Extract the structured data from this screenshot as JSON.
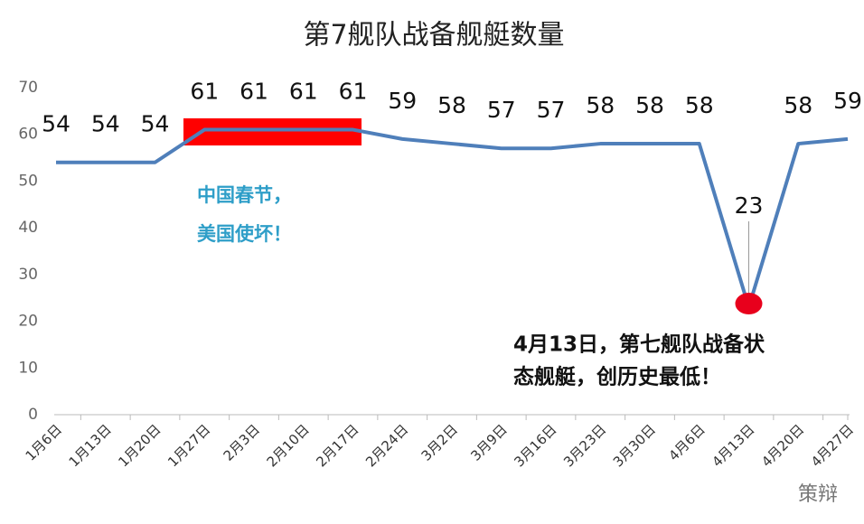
{
  "chart_data": {
    "type": "line",
    "title": "第7舰队战备舰艇数量",
    "categories": [
      "1月6日",
      "1月13日",
      "1月20日",
      "1月27日",
      "2月3日",
      "2月10日",
      "2月17日",
      "2月24日",
      "3月2日",
      "3月9日",
      "3月16日",
      "3月23日",
      "3月30日",
      "4月6日",
      "4月13日",
      "4月20日",
      "4月27日"
    ],
    "series": [
      {
        "name": "第7舰队战备舰艇数量",
        "color": "#4f7fba",
        "values": [
          54,
          54,
          54,
          61,
          61,
          61,
          61,
          59,
          58,
          57,
          57,
          58,
          58,
          58,
          23,
          58,
          59
        ],
        "label_colors": [
          "#111",
          "#111",
          "#111",
          "#111",
          "#111",
          "#111",
          "#111",
          "#111",
          "#111",
          "#111",
          "#111",
          "#111",
          "#111",
          "#111",
          "#e8001c",
          "#111",
          "#111"
        ]
      }
    ],
    "ylim": [
      0,
      70
    ],
    "yticks": [
      0,
      10,
      20,
      30,
      40,
      50,
      60,
      70
    ],
    "grid": false,
    "annotations": [
      {
        "lines": [
          "中国春节，",
          "美国使坏！"
        ],
        "color": "#2e9ec8"
      },
      {
        "lines": [
          "4月13日，第七舰队战备状",
          "态舰艇，创历史最低！"
        ],
        "color": "#111"
      }
    ],
    "watermark": "策辩"
  }
}
